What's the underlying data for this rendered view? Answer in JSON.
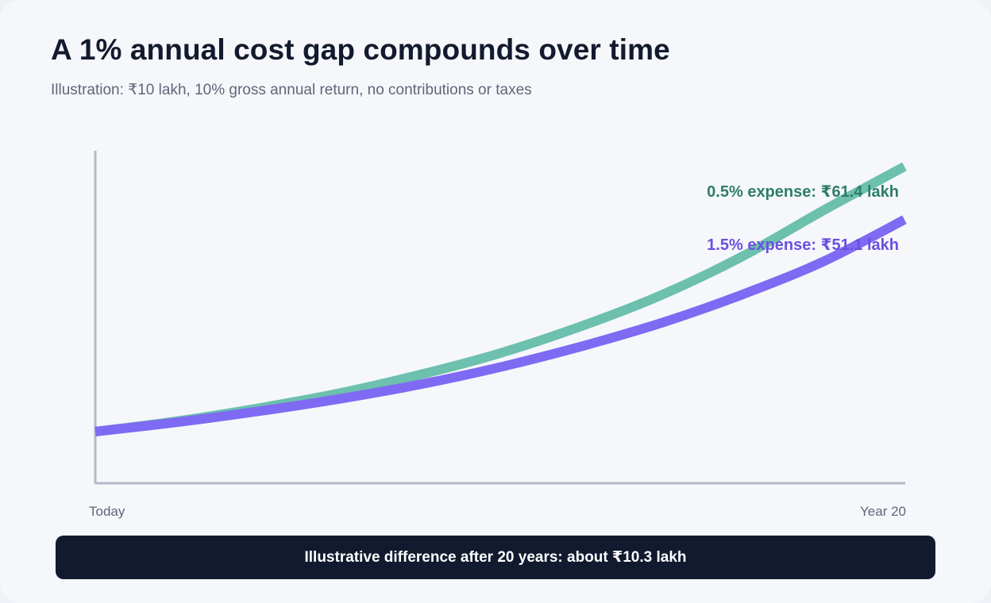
{
  "header": {
    "title": "A 1% annual cost gap compounds over time",
    "subtitle": "Illustration: ₹10 lakh, 10% gross annual return, no contributions or taxes"
  },
  "chart_data": {
    "type": "line",
    "title": "A 1% annual cost gap compounds over time",
    "subtitle": "Illustration: ₹10 lakh, 10% gross annual return, no contributions or taxes",
    "x_ticks": [
      "Today",
      "Year 20"
    ],
    "x": [
      0,
      2,
      4,
      6,
      8,
      10,
      12,
      14,
      16,
      18,
      20
    ],
    "series": [
      {
        "name": "0.5% expense",
        "label": "0.5% expense: ₹61.4 lakh",
        "color": "#6cc0ad",
        "label_color": "#2f7d67",
        "values": [
          10,
          12.0,
          14.5,
          17.4,
          21.0,
          25.2,
          30.4,
          36.5,
          44.0,
          52.9,
          61.4
        ]
      },
      {
        "name": "1.5% expense",
        "label": "1.5% expense: ₹51.1 lakh",
        "color": "#7f6af3",
        "label_color": "#6a4fe0",
        "values": [
          10,
          11.8,
          13.9,
          16.3,
          19.1,
          22.5,
          26.5,
          31.1,
          36.6,
          43.0,
          51.1
        ]
      }
    ],
    "xlim": [
      0,
      20
    ],
    "ylim": [
      0,
      66
    ],
    "grid": false,
    "legend": "inline-right"
  },
  "footer": {
    "text": "Illustrative difference after 20 years: about ₹10.3 lakh"
  }
}
